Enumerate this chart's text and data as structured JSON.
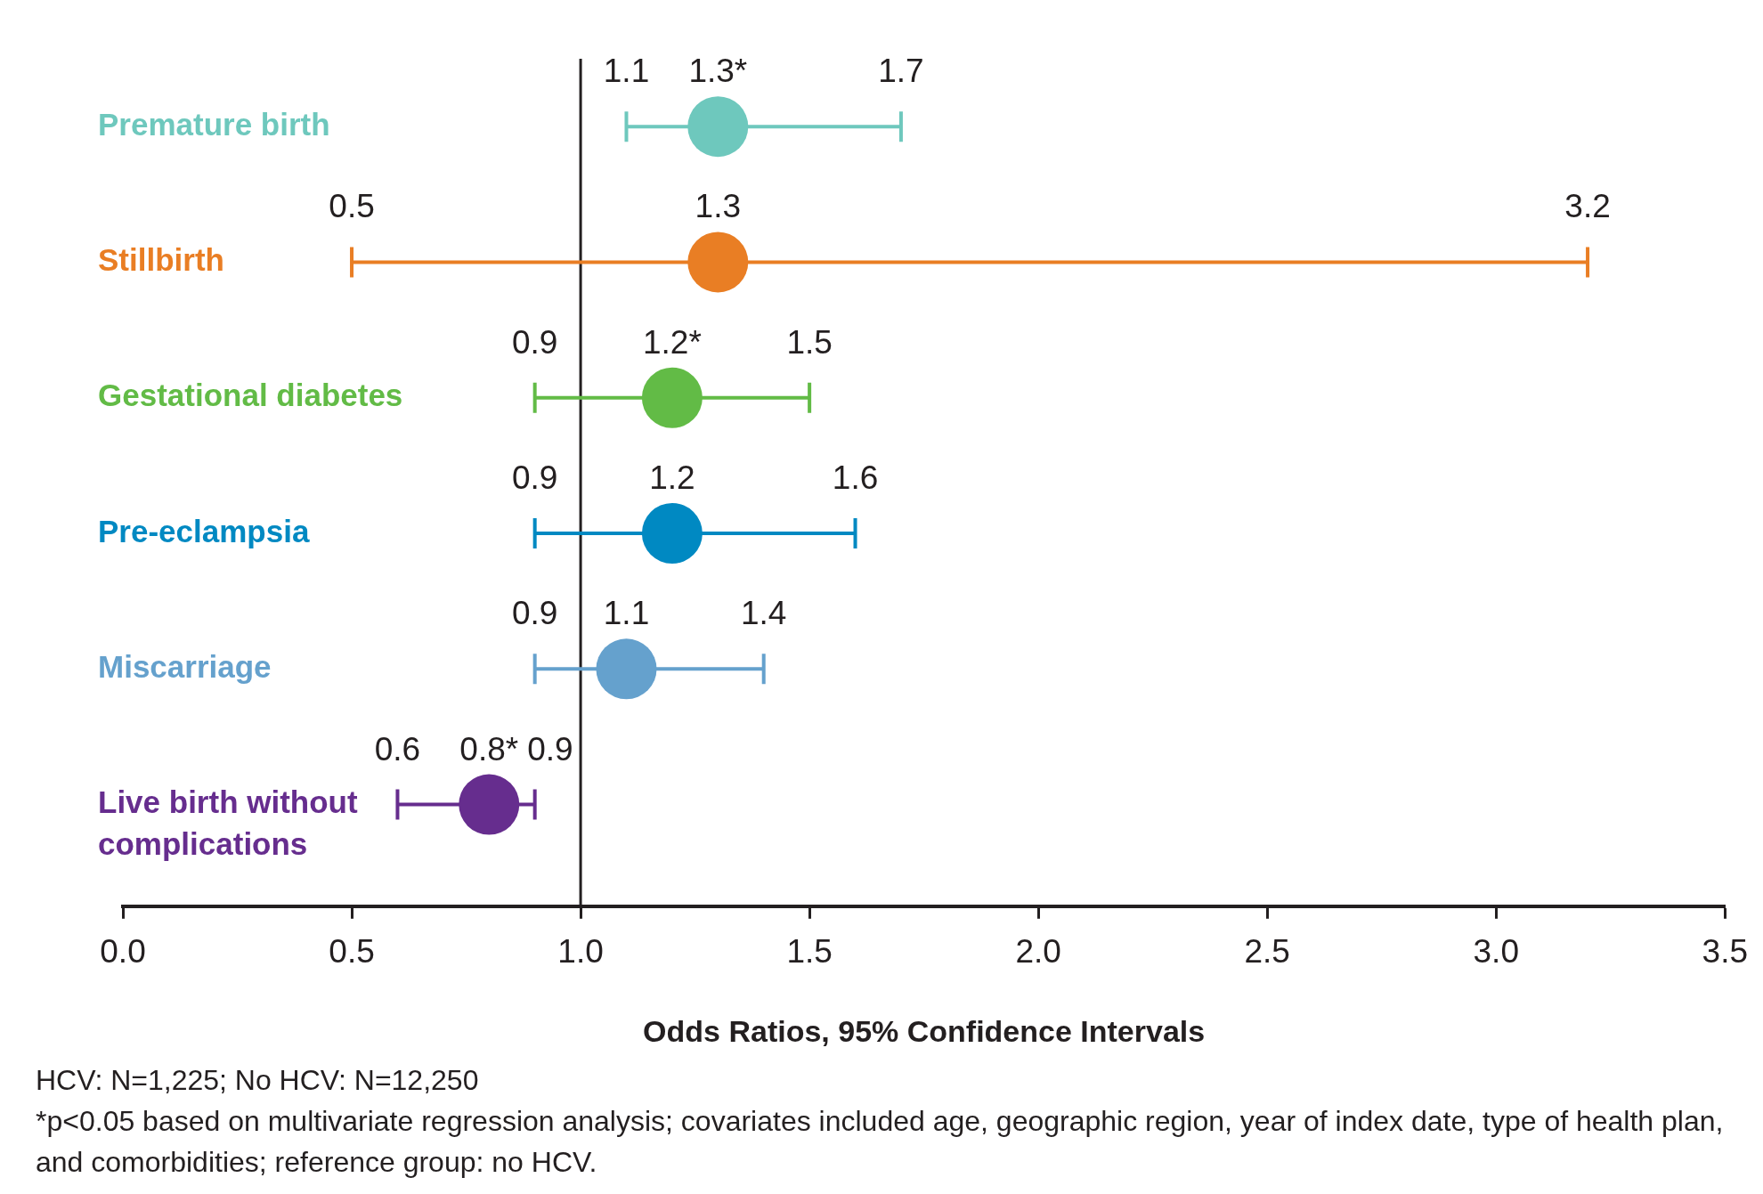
{
  "chart_data": {
    "type": "scatter",
    "orientation": "horizontal",
    "xlabel": "Odds Ratios, 95% Confidence Intervals",
    "categories": [
      "Premature birth",
      "Stillbirth",
      "Gestational diabetes",
      "Pre-eclampsia",
      "Miscarriage",
      "Live birth without complications"
    ],
    "values": [
      1.3,
      1.3,
      1.2,
      1.2,
      1.1,
      0.8
    ],
    "errors": [
      [
        1.1,
        1.7
      ],
      [
        0.5,
        3.2
      ],
      [
        0.9,
        1.5
      ],
      [
        0.9,
        1.6
      ],
      [
        0.9,
        1.4
      ],
      [
        0.6,
        0.9
      ]
    ],
    "value_labels": [
      "1.3*",
      "1.3",
      "1.2*",
      "1.2",
      "1.1",
      "0.8*"
    ],
    "colors": [
      "#6ec8bd",
      "#e97e24",
      "#62bb46",
      "#0089c2",
      "#65a1cd",
      "#662d8e"
    ],
    "marker": "circle",
    "xlim": [
      0,
      3.5
    ],
    "xticks": [
      {
        "value": 0,
        "label": "0.0"
      },
      0.5,
      {
        "value": 1,
        "label": "1.0"
      },
      1.5,
      {
        "value": 2,
        "label": "2.0"
      },
      2.5,
      {
        "value": 3,
        "label": "3.0"
      },
      3.5
    ],
    "ref_lines": [
      {
        "axis": "x",
        "value": 1,
        "color": "#231f20"
      }
    ],
    "annotations": [
      {
        "text": "1.1",
        "x": 1.1,
        "y": "Premature birth"
      },
      {
        "text": "1.7",
        "x": 1.7,
        "y": "Premature birth"
      },
      {
        "text": "0.5",
        "x": 0.5,
        "y": "Stillbirth"
      },
      {
        "text": "3.2",
        "x": 3.2,
        "y": "Stillbirth"
      },
      {
        "text": "0.9",
        "x": 0.9,
        "y": "Gestational diabetes"
      },
      {
        "text": "1.5",
        "x": 1.5,
        "y": "Gestational diabetes"
      },
      {
        "text": "0.9",
        "x": 0.9,
        "y": "Pre-eclampsia"
      },
      {
        "text": "1.6",
        "x": 1.6,
        "y": "Pre-eclampsia"
      },
      {
        "text": "0.9",
        "x": 0.9,
        "y": "Miscarriage"
      },
      {
        "text": "1.4",
        "x": 1.4,
        "y": "Miscarriage"
      },
      {
        "text": "0.6",
        "x": 0.6,
        "y": "Live birth without complications"
      },
      {
        "text": "0.9",
        "x": 0.9,
        "y": "Live birth without complications"
      },
      "HCV: N=1,225; No HCV: N=12,250",
      "*p<0.05 based on multivariate regression analysis; covariates included age, geographic region, year of index date, type of health plan, and comorbidities; reference group: no HCV."
    ]
  }
}
